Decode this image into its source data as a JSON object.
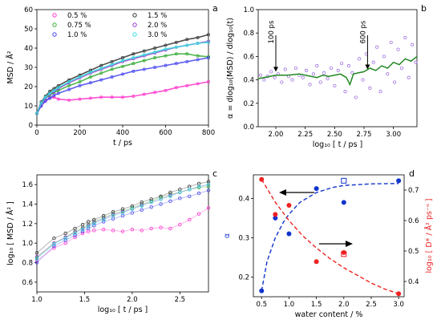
{
  "chart_data": [
    {
      "id": "a",
      "type": "scatter",
      "panel_label": "a",
      "xlabel": "t / ps",
      "ylabel": "MSD / Å²",
      "xlim": [
        0,
        800
      ],
      "ylim": [
        0,
        60
      ],
      "xticks": [
        "0",
        "200",
        "400",
        "600",
        "800"
      ],
      "yticks": [
        "0",
        "10",
        "20",
        "30",
        "40",
        "50",
        "60"
      ],
      "legend_position": "top",
      "series": [
        {
          "name": "0.5 %",
          "color": "#ff33cc",
          "x": [
            0,
            20,
            40,
            60,
            80,
            100,
            150,
            200,
            250,
            300,
            350,
            400,
            450,
            500,
            550,
            600,
            650,
            700,
            750,
            800
          ],
          "y": [
            6,
            10,
            12.5,
            14,
            14.5,
            13.5,
            13,
            13.5,
            14,
            14.5,
            14.5,
            14.5,
            15,
            16,
            17,
            18,
            19.5,
            20.5,
            21.5,
            22.5
          ]
        },
        {
          "name": "0.75 %",
          "color": "#33aa33",
          "x": [
            0,
            20,
            40,
            60,
            80,
            100,
            150,
            200,
            250,
            300,
            350,
            400,
            450,
            500,
            550,
            600,
            650,
            700,
            750,
            800
          ],
          "y": [
            6,
            11,
            14,
            15.5,
            17,
            18,
            20.5,
            22.5,
            25,
            27,
            29,
            30.5,
            32,
            33.5,
            35,
            36,
            37,
            37,
            36,
            35.5
          ]
        },
        {
          "name": "1.0 %",
          "color": "#4444ee",
          "x": [
            0,
            20,
            40,
            60,
            80,
            100,
            150,
            200,
            250,
            300,
            350,
            400,
            450,
            500,
            550,
            600,
            650,
            700,
            750,
            800
          ],
          "y": [
            6,
            10,
            12.5,
            14,
            15.5,
            16.5,
            18.5,
            20.5,
            22,
            23.5,
            25,
            26.5,
            28,
            29,
            30,
            31,
            32,
            33,
            34,
            35
          ]
        },
        {
          "name": "1.5 %",
          "color": "#333333",
          "x": [
            0,
            20,
            40,
            60,
            80,
            100,
            150,
            200,
            250,
            300,
            350,
            400,
            450,
            500,
            550,
            600,
            650,
            700,
            750,
            800
          ],
          "y": [
            6,
            12,
            15,
            17.5,
            19,
            20.5,
            23.5,
            26,
            28.5,
            31,
            33,
            35,
            37,
            38.5,
            40,
            41.5,
            43,
            44.5,
            45.5,
            47
          ]
        },
        {
          "name": "2.0 %",
          "color": "#9933cc",
          "x": [
            0,
            20,
            40,
            60,
            80,
            100,
            150,
            200,
            250,
            300,
            350,
            400,
            450,
            500,
            550,
            600,
            650,
            700,
            750,
            800
          ],
          "y": [
            6,
            11,
            14,
            16,
            17.5,
            19,
            22,
            24.5,
            27,
            29,
            31,
            33,
            34.5,
            36,
            37.5,
            39,
            40.5,
            41.5,
            42.5,
            43.5
          ]
        },
        {
          "name": "3.0 %",
          "color": "#33dddd",
          "x": [
            0,
            20,
            40,
            60,
            80,
            100,
            150,
            200,
            250,
            300,
            350,
            400,
            450,
            500,
            550,
            600,
            650,
            700,
            750,
            800
          ],
          "y": [
            6,
            11.5,
            14.5,
            16.5,
            18,
            19.5,
            22.5,
            25,
            27.5,
            29.5,
            31.5,
            33.5,
            35,
            36.5,
            38,
            39.5,
            40.5,
            41.5,
            42.5,
            43
          ]
        }
      ]
    },
    {
      "id": "b",
      "type": "scatter",
      "panel_label": "b",
      "xlabel": "log₁₀ [ t / ps ]",
      "ylabel": "α = dlog₁₀(MSD) / dlog₁₀(t)",
      "xlim": [
        1.85,
        3.2
      ],
      "ylim": [
        0,
        1
      ],
      "xticks": [
        "2.00",
        "2.25",
        "2.50",
        "2.75",
        "3.00"
      ],
      "yticks": [
        "0.0",
        "0.2",
        "0.4",
        "0.6",
        "0.8",
        "1.0"
      ],
      "annotations": [
        {
          "text": "100 ps",
          "x": 2.0,
          "y": 0.42
        },
        {
          "text": "600 ps",
          "x": 2.78,
          "y": 0.44
        }
      ],
      "series": [
        {
          "name": "",
          "color": "#9966dd",
          "style": "points",
          "x": [
            1.87,
            1.9,
            1.93,
            1.96,
            1.99,
            2.02,
            2.05,
            2.08,
            2.11,
            2.14,
            2.17,
            2.2,
            2.23,
            2.26,
            2.29,
            2.32,
            2.35,
            2.38,
            2.41,
            2.44,
            2.47,
            2.5,
            2.53,
            2.56,
            2.59,
            2.62,
            2.65,
            2.68,
            2.71,
            2.74,
            2.77,
            2.8,
            2.83,
            2.86,
            2.89,
            2.92,
            2.95,
            2.98,
            3.01,
            3.04,
            3.07,
            3.1,
            3.13,
            3.16,
            3.19
          ],
          "y": [
            0.44,
            0.4,
            0.43,
            0.47,
            0.42,
            0.45,
            0.38,
            0.49,
            0.43,
            0.4,
            0.5,
            0.44,
            0.42,
            0.48,
            0.36,
            0.45,
            0.52,
            0.38,
            0.46,
            0.41,
            0.5,
            0.35,
            0.48,
            0.54,
            0.3,
            0.52,
            0.46,
            0.25,
            0.58,
            0.4,
            0.62,
            0.33,
            0.55,
            0.68,
            0.3,
            0.6,
            0.45,
            0.72,
            0.38,
            0.66,
            0.5,
            0.76,
            0.42,
            0.7,
            0.55
          ]
        },
        {
          "name": "",
          "color": "#228822",
          "style": "line",
          "x": [
            1.85,
            1.95,
            2.0,
            2.1,
            2.2,
            2.3,
            2.35,
            2.4,
            2.45,
            2.5,
            2.55,
            2.6,
            2.63,
            2.66,
            2.7,
            2.75,
            2.8,
            2.85,
            2.9,
            2.95,
            3.0,
            3.05,
            3.1,
            3.15,
            3.2
          ],
          "y": [
            0.41,
            0.43,
            0.44,
            0.44,
            0.45,
            0.43,
            0.42,
            0.44,
            0.43,
            0.44,
            0.45,
            0.42,
            0.36,
            0.45,
            0.46,
            0.47,
            0.5,
            0.48,
            0.52,
            0.5,
            0.55,
            0.53,
            0.58,
            0.56,
            0.6
          ]
        }
      ]
    },
    {
      "id": "c",
      "type": "scatter",
      "panel_label": "c",
      "xlabel": "log₁₀ [ t / ps ]",
      "ylabel": "log₁₀ [ MSD / Å² ]",
      "xlim": [
        1.0,
        2.8
      ],
      "ylim": [
        0.5,
        1.7
      ],
      "xticks": [
        "1.0",
        "1.5",
        "2.0",
        "2.5"
      ],
      "yticks": [
        "0.6",
        "0.8",
        "1.0",
        "1.2",
        "1.4",
        "1.6"
      ],
      "series": [
        {
          "name": "0.5 %",
          "color": "#ff33cc",
          "x": [
            1.0,
            1.18,
            1.3,
            1.4,
            1.48,
            1.54,
            1.6,
            1.7,
            1.8,
            1.9,
            2.0,
            2.1,
            2.2,
            2.3,
            2.4,
            2.5,
            2.6,
            2.7,
            2.8
          ],
          "y": [
            0.82,
            0.95,
            1.0,
            1.06,
            1.1,
            1.12,
            1.13,
            1.14,
            1.13,
            1.12,
            1.14,
            1.13,
            1.15,
            1.16,
            1.15,
            1.19,
            1.24,
            1.3,
            1.36
          ]
        },
        {
          "name": "0.75 %",
          "color": "#33aa33",
          "x": [
            1.0,
            1.18,
            1.3,
            1.4,
            1.48,
            1.54,
            1.6,
            1.7,
            1.8,
            1.9,
            2.0,
            2.1,
            2.2,
            2.3,
            2.4,
            2.5,
            2.6,
            2.7,
            2.8
          ],
          "y": [
            0.85,
            1.0,
            1.06,
            1.12,
            1.16,
            1.19,
            1.22,
            1.26,
            1.3,
            1.33,
            1.36,
            1.4,
            1.43,
            1.47,
            1.5,
            1.52,
            1.55,
            1.57,
            1.58
          ]
        },
        {
          "name": "1.0 %",
          "color": "#4444ee",
          "x": [
            1.0,
            1.18,
            1.3,
            1.4,
            1.48,
            1.54,
            1.6,
            1.7,
            1.8,
            1.9,
            2.0,
            2.1,
            2.2,
            2.3,
            2.4,
            2.5,
            2.6,
            2.7,
            2.8
          ],
          "y": [
            0.8,
            0.97,
            1.03,
            1.08,
            1.12,
            1.15,
            1.18,
            1.22,
            1.25,
            1.28,
            1.31,
            1.34,
            1.37,
            1.4,
            1.43,
            1.46,
            1.48,
            1.51,
            1.54
          ]
        },
        {
          "name": "1.5 %",
          "color": "#333333",
          "x": [
            1.0,
            1.18,
            1.3,
            1.4,
            1.48,
            1.54,
            1.6,
            1.7,
            1.8,
            1.9,
            2.0,
            2.1,
            2.2,
            2.3,
            2.4,
            2.5,
            2.6,
            2.7,
            2.8
          ],
          "y": [
            0.9,
            1.05,
            1.1,
            1.15,
            1.19,
            1.22,
            1.24,
            1.28,
            1.32,
            1.35,
            1.38,
            1.42,
            1.45,
            1.48,
            1.52,
            1.55,
            1.58,
            1.61,
            1.63
          ]
        },
        {
          "name": "2.0 %",
          "color": "#9933cc",
          "x": [
            1.0,
            1.18,
            1.3,
            1.4,
            1.48,
            1.54,
            1.6,
            1.7,
            1.8,
            1.9,
            2.0,
            2.1,
            2.2,
            2.3,
            2.4,
            2.5,
            2.6,
            2.7,
            2.8
          ],
          "y": [
            0.86,
            1.0,
            1.06,
            1.11,
            1.15,
            1.18,
            1.21,
            1.25,
            1.29,
            1.32,
            1.35,
            1.39,
            1.42,
            1.45,
            1.49,
            1.52,
            1.55,
            1.58,
            1.6
          ]
        },
        {
          "name": "3.0 %",
          "color": "#33dddd",
          "x": [
            1.0,
            1.18,
            1.3,
            1.4,
            1.48,
            1.54,
            1.6,
            1.7,
            1.8,
            1.9,
            2.0,
            2.1,
            2.2,
            2.3,
            2.4,
            2.5,
            2.6,
            2.7,
            2.8
          ],
          "y": [
            0.84,
            0.99,
            1.05,
            1.1,
            1.14,
            1.17,
            1.2,
            1.24,
            1.28,
            1.31,
            1.35,
            1.38,
            1.42,
            1.45,
            1.48,
            1.52,
            1.55,
            1.58,
            1.6
          ]
        }
      ]
    },
    {
      "id": "d",
      "type": "scatter",
      "panel_label": "d",
      "xlabel": "water content / %",
      "ylabel": "α",
      "ylabel_right": "log₁₀ [ D* / Å² ps⁻ᵅ ]",
      "xlim": [
        0.35,
        3.1
      ],
      "ylim": [
        0.15,
        0.46
      ],
      "ylim_right": [
        0.35,
        0.75
      ],
      "xticks": [
        "0.5",
        "1.0",
        "1.5",
        "2.0",
        "2.5",
        "3.0"
      ],
      "yticks": [
        "0.2",
        "0.3",
        "0.4"
      ],
      "yticks_right": [
        "0.4",
        "0.5",
        "0.6",
        "0.7"
      ],
      "series": [
        {
          "name": "α",
          "color": "#1133cc",
          "axis": "left",
          "x": [
            0.5,
            0.75,
            1.0,
            1.5,
            2.0,
            3.0
          ],
          "y": [
            0.165,
            0.35,
            0.31,
            0.425,
            0.39,
            0.445
          ]
        },
        {
          "name": "α (open)",
          "color": "#1133cc",
          "axis": "left",
          "marker": "open-square",
          "x": [
            2.0
          ],
          "y": [
            0.445
          ]
        },
        {
          "name": "α fit",
          "color": "#1133cc",
          "axis": "left",
          "style": "dashed",
          "x": [
            0.5,
            0.6,
            0.75,
            0.9,
            1.0,
            1.2,
            1.5,
            1.8,
            2.0,
            2.5,
            3.0
          ],
          "y": [
            0.165,
            0.24,
            0.3,
            0.34,
            0.36,
            0.39,
            0.415,
            0.428,
            0.433,
            0.437,
            0.438
          ]
        },
        {
          "name": "log₁₀ D*",
          "color": "#ee2222",
          "axis": "right",
          "x": [
            0.5,
            0.75,
            1.0,
            1.5,
            2.0,
            3.0
          ],
          "y": [
            0.735,
            0.62,
            0.65,
            0.465,
            0.495,
            0.36
          ]
        },
        {
          "name": "log₁₀ D* (open)",
          "color": "#ee2222",
          "axis": "right",
          "marker": "open-square",
          "x": [
            2.0
          ],
          "y": [
            0.49
          ]
        },
        {
          "name": "log₁₀ D* fit",
          "color": "#ee2222",
          "axis": "right",
          "style": "dashed",
          "x": [
            0.5,
            0.75,
            1.0,
            1.25,
            1.5,
            1.75,
            2.0,
            2.25,
            2.5,
            2.75,
            3.0
          ],
          "y": [
            0.735,
            0.66,
            0.6,
            0.55,
            0.51,
            0.475,
            0.445,
            0.42,
            0.395,
            0.375,
            0.36
          ]
        }
      ]
    }
  ]
}
